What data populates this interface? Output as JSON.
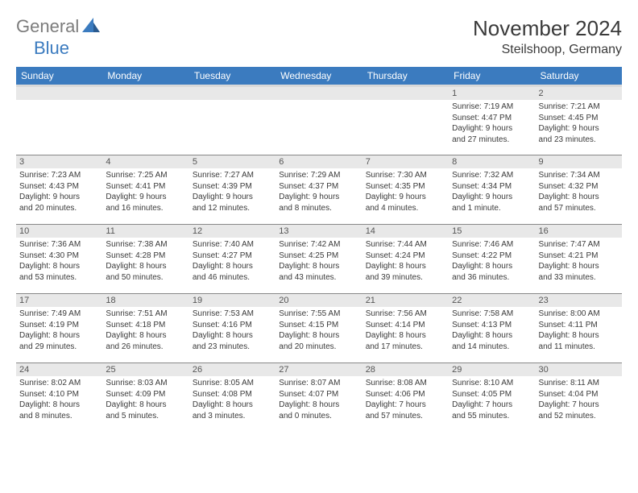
{
  "logo": {
    "part1": "General",
    "part2": "Blue"
  },
  "title": "November 2024",
  "location": "Steilshoop, Germany",
  "colors": {
    "header_bg": "#3b7bbf",
    "header_text": "#ffffff",
    "daynum_bg": "#e8e8e8",
    "text": "#3a3a3a",
    "logo_gray": "#7c7c7c",
    "logo_blue": "#3b7bbf"
  },
  "weekdays": [
    "Sunday",
    "Monday",
    "Tuesday",
    "Wednesday",
    "Thursday",
    "Friday",
    "Saturday"
  ],
  "weeks": [
    [
      null,
      null,
      null,
      null,
      null,
      {
        "n": "1",
        "sr": "Sunrise: 7:19 AM",
        "ss": "Sunset: 4:47 PM",
        "d1": "Daylight: 9 hours",
        "d2": "and 27 minutes."
      },
      {
        "n": "2",
        "sr": "Sunrise: 7:21 AM",
        "ss": "Sunset: 4:45 PM",
        "d1": "Daylight: 9 hours",
        "d2": "and 23 minutes."
      }
    ],
    [
      {
        "n": "3",
        "sr": "Sunrise: 7:23 AM",
        "ss": "Sunset: 4:43 PM",
        "d1": "Daylight: 9 hours",
        "d2": "and 20 minutes."
      },
      {
        "n": "4",
        "sr": "Sunrise: 7:25 AM",
        "ss": "Sunset: 4:41 PM",
        "d1": "Daylight: 9 hours",
        "d2": "and 16 minutes."
      },
      {
        "n": "5",
        "sr": "Sunrise: 7:27 AM",
        "ss": "Sunset: 4:39 PM",
        "d1": "Daylight: 9 hours",
        "d2": "and 12 minutes."
      },
      {
        "n": "6",
        "sr": "Sunrise: 7:29 AM",
        "ss": "Sunset: 4:37 PM",
        "d1": "Daylight: 9 hours",
        "d2": "and 8 minutes."
      },
      {
        "n": "7",
        "sr": "Sunrise: 7:30 AM",
        "ss": "Sunset: 4:35 PM",
        "d1": "Daylight: 9 hours",
        "d2": "and 4 minutes."
      },
      {
        "n": "8",
        "sr": "Sunrise: 7:32 AM",
        "ss": "Sunset: 4:34 PM",
        "d1": "Daylight: 9 hours",
        "d2": "and 1 minute."
      },
      {
        "n": "9",
        "sr": "Sunrise: 7:34 AM",
        "ss": "Sunset: 4:32 PM",
        "d1": "Daylight: 8 hours",
        "d2": "and 57 minutes."
      }
    ],
    [
      {
        "n": "10",
        "sr": "Sunrise: 7:36 AM",
        "ss": "Sunset: 4:30 PM",
        "d1": "Daylight: 8 hours",
        "d2": "and 53 minutes."
      },
      {
        "n": "11",
        "sr": "Sunrise: 7:38 AM",
        "ss": "Sunset: 4:28 PM",
        "d1": "Daylight: 8 hours",
        "d2": "and 50 minutes."
      },
      {
        "n": "12",
        "sr": "Sunrise: 7:40 AM",
        "ss": "Sunset: 4:27 PM",
        "d1": "Daylight: 8 hours",
        "d2": "and 46 minutes."
      },
      {
        "n": "13",
        "sr": "Sunrise: 7:42 AM",
        "ss": "Sunset: 4:25 PM",
        "d1": "Daylight: 8 hours",
        "d2": "and 43 minutes."
      },
      {
        "n": "14",
        "sr": "Sunrise: 7:44 AM",
        "ss": "Sunset: 4:24 PM",
        "d1": "Daylight: 8 hours",
        "d2": "and 39 minutes."
      },
      {
        "n": "15",
        "sr": "Sunrise: 7:46 AM",
        "ss": "Sunset: 4:22 PM",
        "d1": "Daylight: 8 hours",
        "d2": "and 36 minutes."
      },
      {
        "n": "16",
        "sr": "Sunrise: 7:47 AM",
        "ss": "Sunset: 4:21 PM",
        "d1": "Daylight: 8 hours",
        "d2": "and 33 minutes."
      }
    ],
    [
      {
        "n": "17",
        "sr": "Sunrise: 7:49 AM",
        "ss": "Sunset: 4:19 PM",
        "d1": "Daylight: 8 hours",
        "d2": "and 29 minutes."
      },
      {
        "n": "18",
        "sr": "Sunrise: 7:51 AM",
        "ss": "Sunset: 4:18 PM",
        "d1": "Daylight: 8 hours",
        "d2": "and 26 minutes."
      },
      {
        "n": "19",
        "sr": "Sunrise: 7:53 AM",
        "ss": "Sunset: 4:16 PM",
        "d1": "Daylight: 8 hours",
        "d2": "and 23 minutes."
      },
      {
        "n": "20",
        "sr": "Sunrise: 7:55 AM",
        "ss": "Sunset: 4:15 PM",
        "d1": "Daylight: 8 hours",
        "d2": "and 20 minutes."
      },
      {
        "n": "21",
        "sr": "Sunrise: 7:56 AM",
        "ss": "Sunset: 4:14 PM",
        "d1": "Daylight: 8 hours",
        "d2": "and 17 minutes."
      },
      {
        "n": "22",
        "sr": "Sunrise: 7:58 AM",
        "ss": "Sunset: 4:13 PM",
        "d1": "Daylight: 8 hours",
        "d2": "and 14 minutes."
      },
      {
        "n": "23",
        "sr": "Sunrise: 8:00 AM",
        "ss": "Sunset: 4:11 PM",
        "d1": "Daylight: 8 hours",
        "d2": "and 11 minutes."
      }
    ],
    [
      {
        "n": "24",
        "sr": "Sunrise: 8:02 AM",
        "ss": "Sunset: 4:10 PM",
        "d1": "Daylight: 8 hours",
        "d2": "and 8 minutes."
      },
      {
        "n": "25",
        "sr": "Sunrise: 8:03 AM",
        "ss": "Sunset: 4:09 PM",
        "d1": "Daylight: 8 hours",
        "d2": "and 5 minutes."
      },
      {
        "n": "26",
        "sr": "Sunrise: 8:05 AM",
        "ss": "Sunset: 4:08 PM",
        "d1": "Daylight: 8 hours",
        "d2": "and 3 minutes."
      },
      {
        "n": "27",
        "sr": "Sunrise: 8:07 AM",
        "ss": "Sunset: 4:07 PM",
        "d1": "Daylight: 8 hours",
        "d2": "and 0 minutes."
      },
      {
        "n": "28",
        "sr": "Sunrise: 8:08 AM",
        "ss": "Sunset: 4:06 PM",
        "d1": "Daylight: 7 hours",
        "d2": "and 57 minutes."
      },
      {
        "n": "29",
        "sr": "Sunrise: 8:10 AM",
        "ss": "Sunset: 4:05 PM",
        "d1": "Daylight: 7 hours",
        "d2": "and 55 minutes."
      },
      {
        "n": "30",
        "sr": "Sunrise: 8:11 AM",
        "ss": "Sunset: 4:04 PM",
        "d1": "Daylight: 7 hours",
        "d2": "and 52 minutes."
      }
    ]
  ]
}
